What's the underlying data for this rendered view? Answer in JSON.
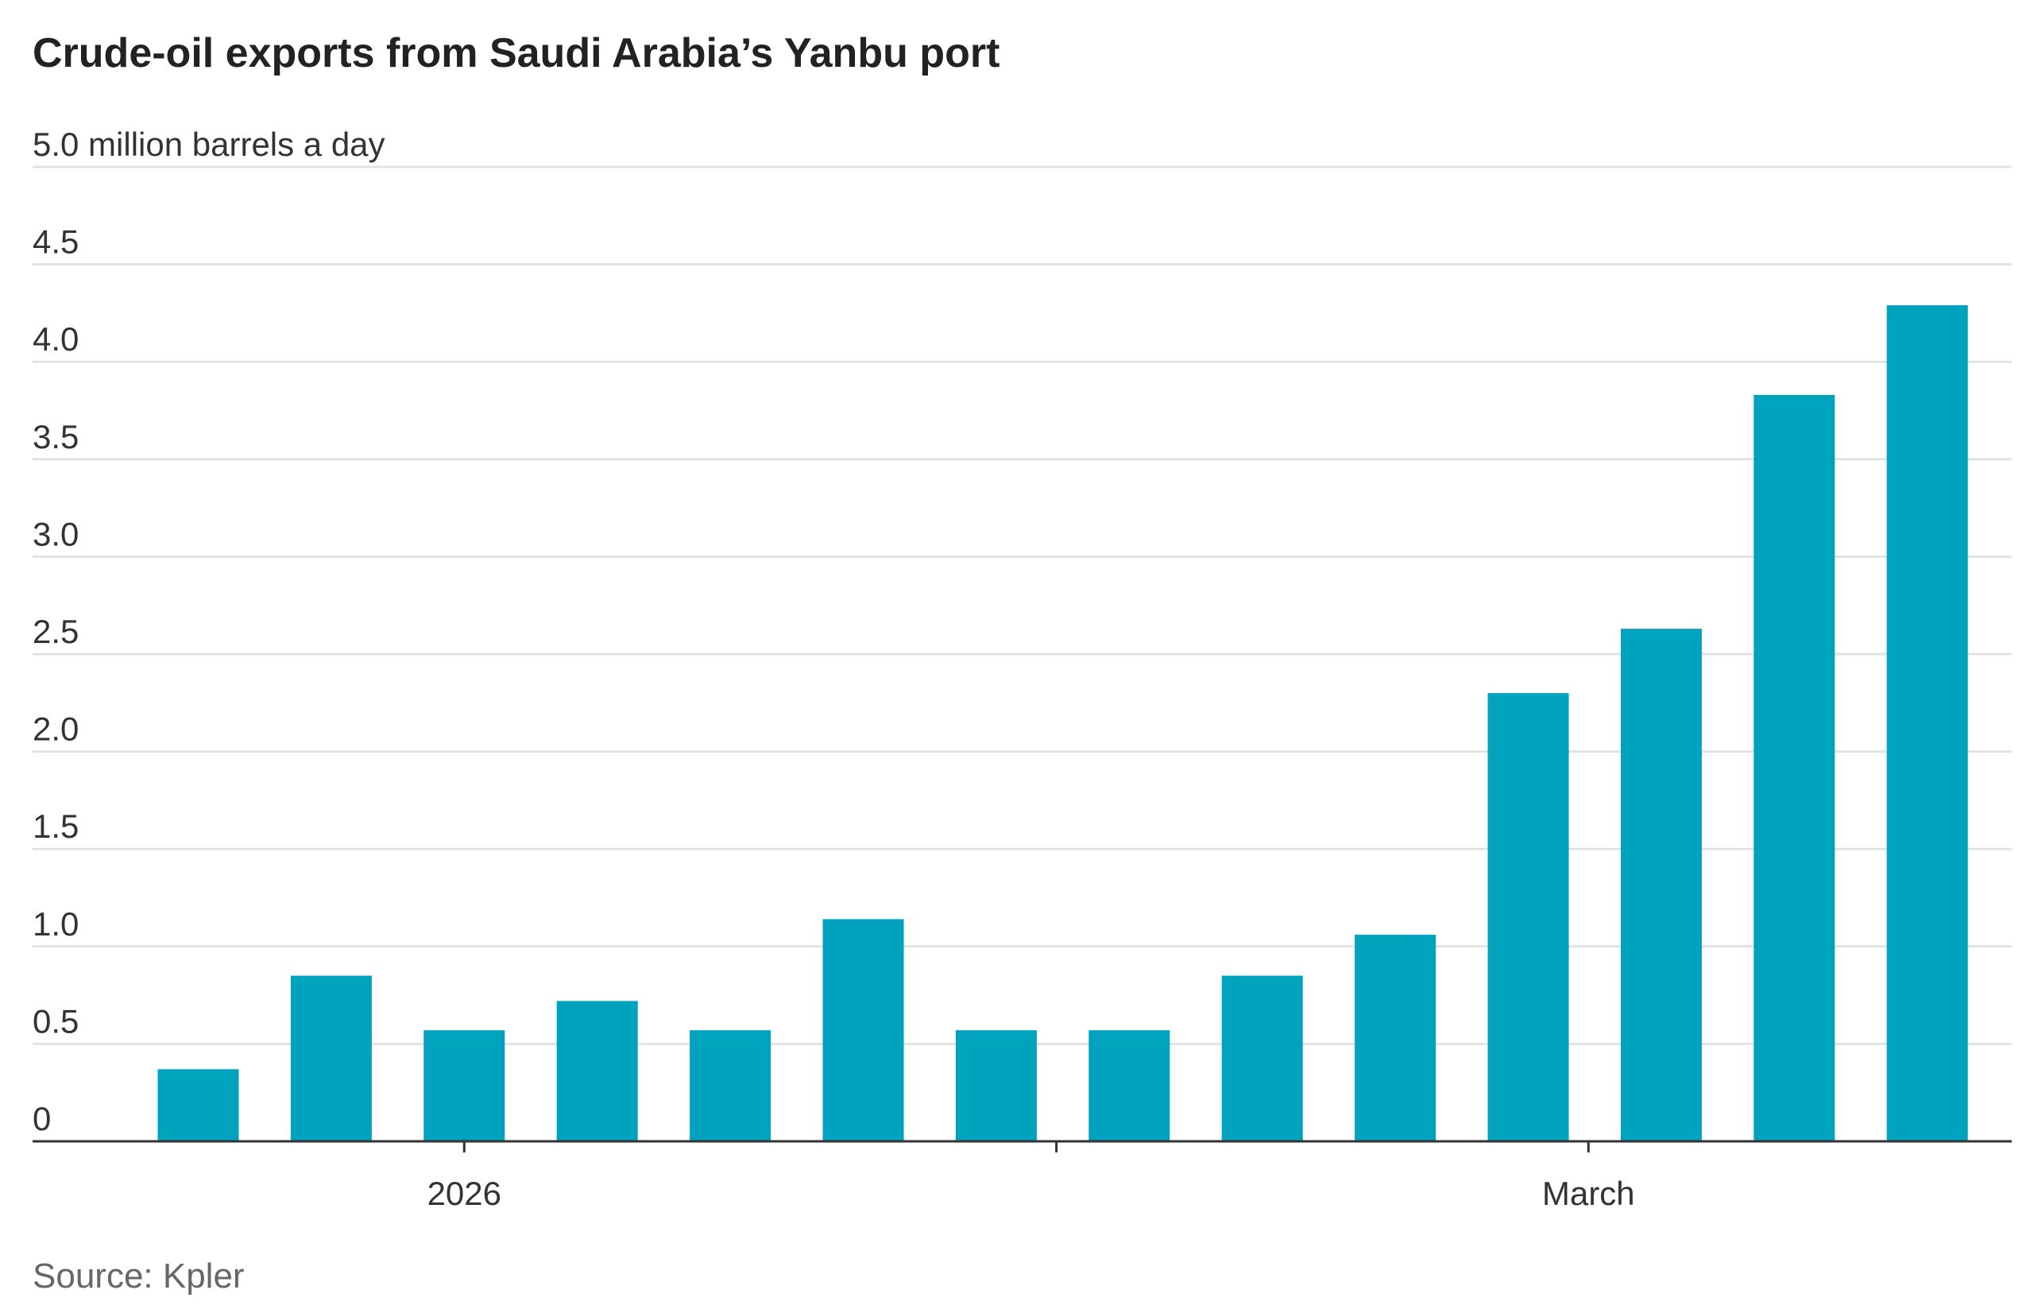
{
  "chart_data": {
    "type": "bar",
    "title": "Crude-oil exports from Saudi Arabia’s Yanbu port",
    "ylabel": "million barrels a day",
    "ylim": [
      0,
      5.0
    ],
    "y_ticks": [
      "0",
      "0.5",
      "1.0",
      "1.5",
      "2.0",
      "2.5",
      "3.0",
      "3.5",
      "4.0",
      "4.5",
      "5.0"
    ],
    "y_top_label": "5.0 million barrels a day",
    "x_tick_labels": [
      {
        "label": "2026",
        "after_bar": 3
      },
      {
        "label": "",
        "after_bar": 7
      },
      {
        "label": "March",
        "after_bar": 11
      }
    ],
    "grid": true,
    "bar_color": "#00a3bd",
    "values": [
      0.37,
      0.85,
      0.57,
      0.72,
      0.57,
      1.14,
      0.57,
      0.57,
      0.85,
      1.06,
      2.3,
      2.63,
      3.83,
      4.29
    ],
    "source": "Source: Kpler"
  }
}
